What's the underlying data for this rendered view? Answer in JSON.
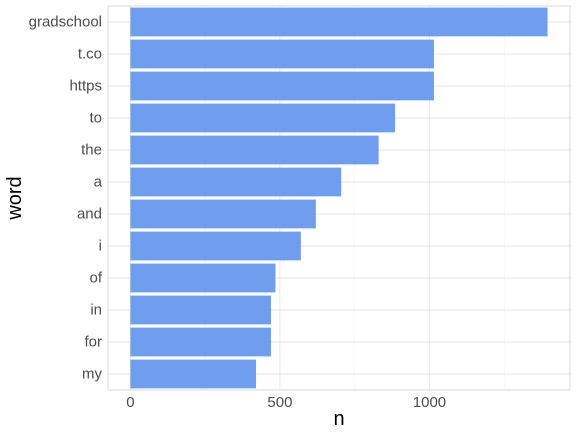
{
  "chart_data": {
    "type": "bar",
    "orientation": "horizontal",
    "categories": [
      "gradschool",
      "t.co",
      "https",
      "to",
      "the",
      "a",
      "and",
      "i",
      "of",
      "in",
      "for",
      "my"
    ],
    "values": [
      1395,
      1015,
      1015,
      885,
      830,
      705,
      620,
      570,
      485,
      470,
      470,
      420
    ],
    "xlabel": "n",
    "ylabel": "word",
    "xlim": [
      -75,
      1470
    ],
    "x_ticks": [
      0,
      500,
      1000
    ],
    "x_tick_labels": [
      "0",
      "500",
      "1000"
    ],
    "grid": true,
    "theme": "light",
    "colors": {
      "bar": "#6495ED",
      "grid": "#e6e6e6",
      "panel_border": "#d9d9d9"
    }
  }
}
